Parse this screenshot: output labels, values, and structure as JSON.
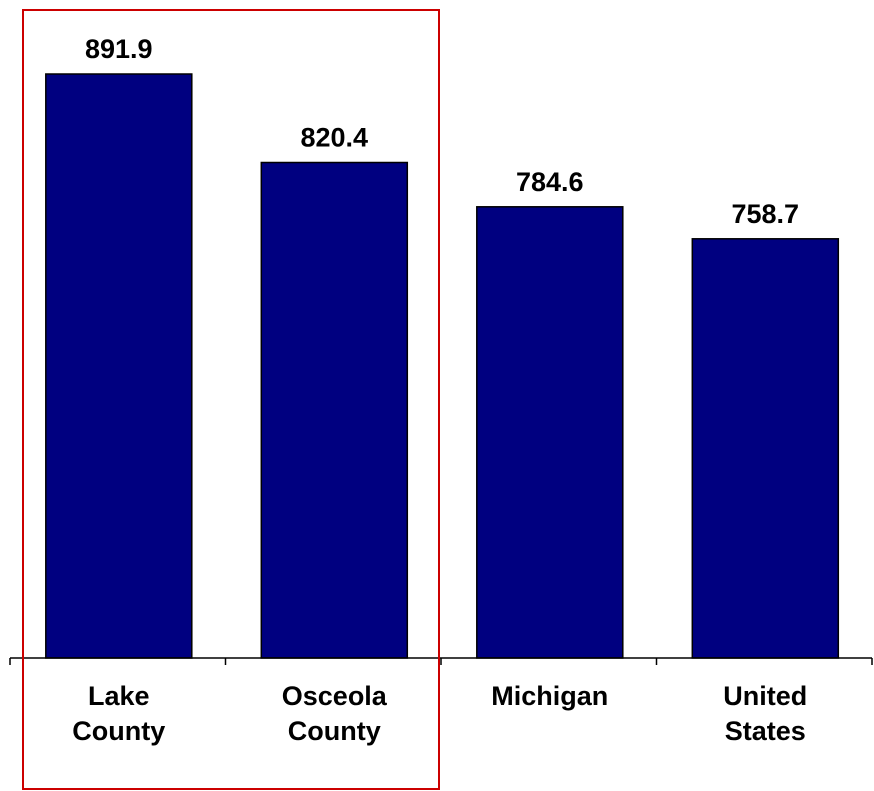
{
  "chart_data": {
    "type": "bar",
    "categories": [
      [
        "Lake",
        "County"
      ],
      [
        "Osceola",
        "County"
      ],
      [
        "Michigan"
      ],
      [
        "United",
        "States"
      ]
    ],
    "values": [
      891.9,
      820.4,
      784.6,
      758.7
    ],
    "value_labels": [
      "891.9",
      "820.4",
      "784.6",
      "758.7"
    ],
    "title": "",
    "xlabel": "",
    "ylabel": "",
    "ylim": [
      0,
      891.9
    ],
    "grid": false,
    "legend": "none",
    "bar_color": "#000080",
    "highlight": {
      "categories": [
        0,
        1
      ],
      "color": "#cc0000"
    }
  }
}
